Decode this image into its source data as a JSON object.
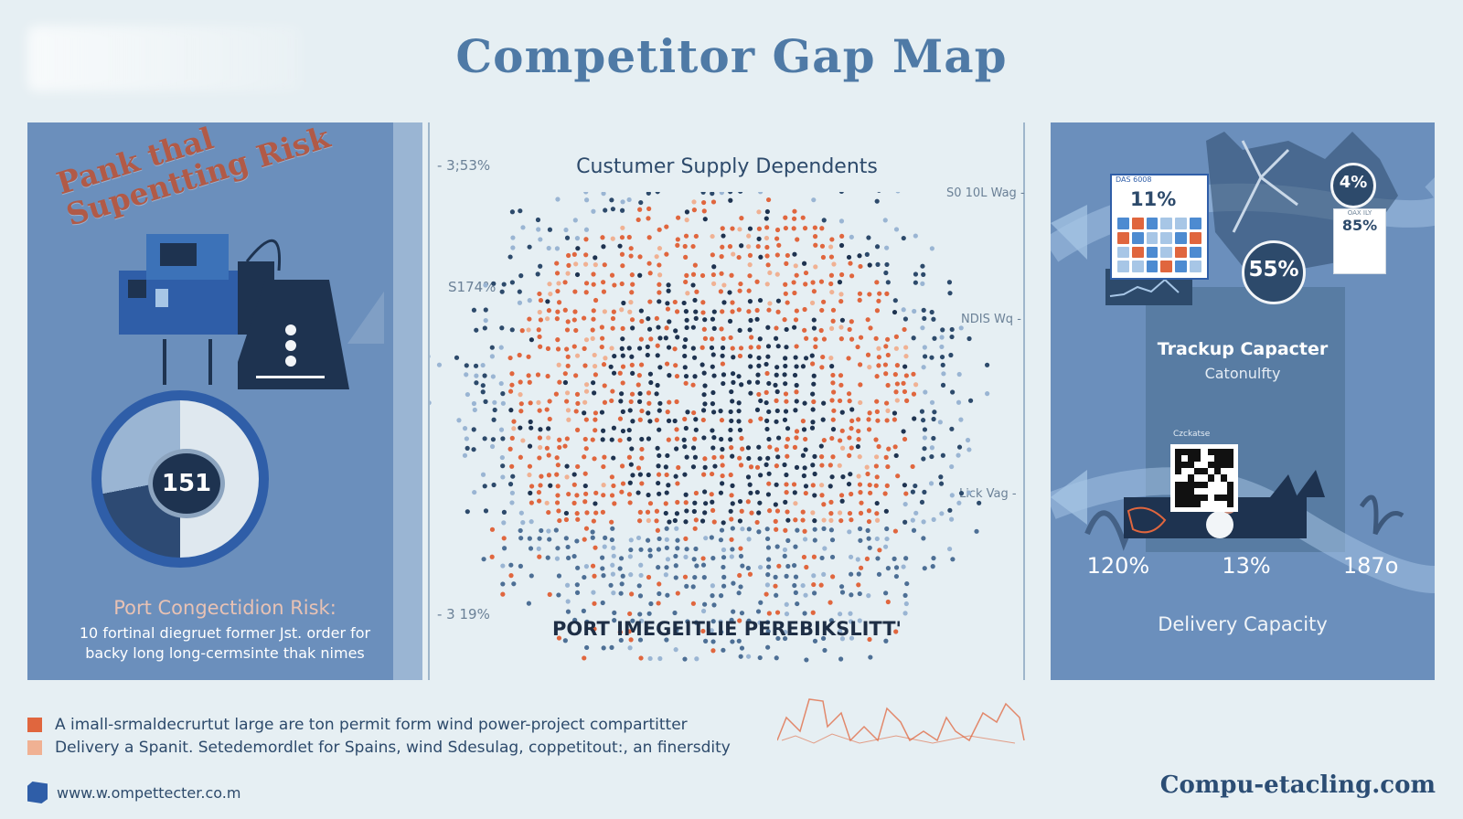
{
  "page": {
    "title": "Competitor Gap Map",
    "website_left": "www.w.ompettecter.co.m",
    "website_right": "Compu-etacling.com"
  },
  "left_panel": {
    "risk_overlay_line1": "Pank thal",
    "risk_overlay_line2": "Supentting Risk",
    "gauge_value": "151",
    "caption_title": "Port Congectidion Risk:",
    "caption_line1": "10 fortinal diegruet former Jst. order for",
    "caption_line2": "backy long long-cermsinte thak nimes"
  },
  "center_panel": {
    "chart_title": "Custumer Supply Dependents",
    "left_axis": [
      "- 3;53%",
      "S174%",
      "- 3 19%"
    ],
    "right_axis": [
      "S0 10L Wag -",
      "NDIS Wq -",
      "Lick Vag -"
    ],
    "bottom_label": "PORT IMEGEITLIE PEREBIKSLITT'"
  },
  "right_panel": {
    "card_a_tag": "DAS 6008",
    "card_a_value": "11%",
    "badge_small": "4%",
    "badge_large": "55%",
    "card_b_tag": "OAX ILY",
    "card_b_value": "85%",
    "title": "Trackup Capacter",
    "subtitle": "Catonulfty",
    "qr_label": "Czckatse",
    "stats": [
      "120%",
      "13%",
      "187o"
    ],
    "footer": "Delivery Capacity"
  },
  "legend": [
    {
      "color": "#e0663e",
      "text": "A imall-srmaldecrurtut large are ton permit form wind power-project compartitter"
    },
    {
      "color": "#f0b193",
      "text": "Delivery a Spanit. Setedemordlet for Spains, wind Sdesulag, coppetitout:, an finersdity"
    }
  ],
  "colors": {
    "orange": "#e0663e",
    "navy": "#1e3350",
    "panel_blue": "#6b8fbc",
    "light_blue": "#9ab5d3"
  }
}
